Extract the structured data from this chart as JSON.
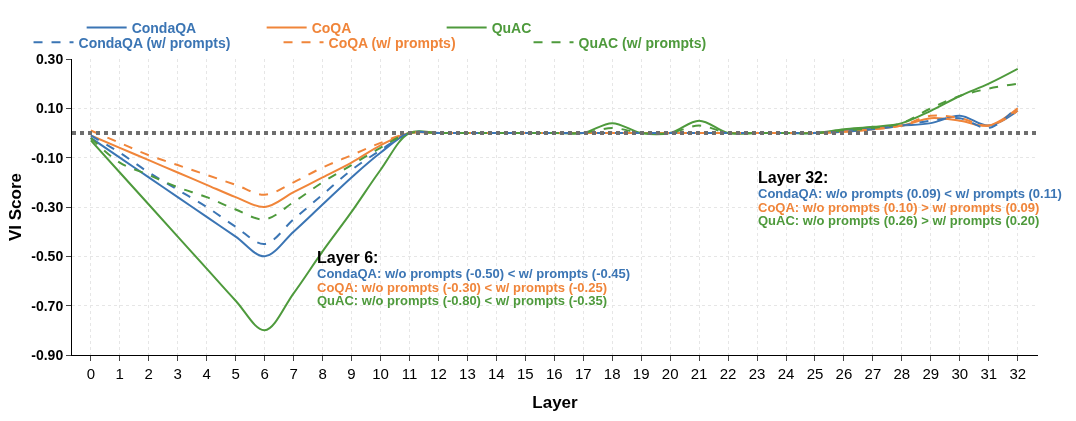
{
  "chart_data": {
    "type": "line",
    "xlabel": "Layer",
    "ylabel": "VI Score",
    "x": [
      0,
      1,
      2,
      3,
      4,
      5,
      6,
      7,
      8,
      9,
      10,
      11,
      12,
      13,
      14,
      15,
      16,
      17,
      18,
      19,
      20,
      21,
      22,
      23,
      24,
      25,
      26,
      27,
      28,
      29,
      30,
      31,
      32
    ],
    "xlim": [
      -0.65,
      32.7
    ],
    "xticks": [
      0,
      1,
      2,
      3,
      4,
      5,
      6,
      7,
      8,
      9,
      10,
      11,
      12,
      13,
      14,
      15,
      16,
      17,
      18,
      19,
      20,
      21,
      22,
      23,
      24,
      25,
      26,
      27,
      28,
      29,
      30,
      31,
      32
    ],
    "ylim": [
      -0.9,
      0.3
    ],
    "yticks": [
      {
        "value": -0.9,
        "label": "-0.90"
      },
      {
        "value": -0.7,
        "label": "-0.70"
      },
      {
        "value": -0.5,
        "label": "-0.50"
      },
      {
        "value": -0.3,
        "label": "-0.30"
      },
      {
        "value": -0.1,
        "label": "-0.10"
      },
      {
        "value": 0.1,
        "label": "0.10"
      },
      {
        "value": 0.3,
        "label": "0.30"
      }
    ],
    "grid": true,
    "legend": "top",
    "marker": "none",
    "series": [
      {
        "name": "CondaQA",
        "color": "#3b75b4",
        "line_style": "solid",
        "values": [
          -0.02,
          -0.1,
          -0.18,
          -0.26,
          -0.34,
          -0.42,
          -0.5,
          -0.4,
          -0.29,
          -0.18,
          -0.08,
          0,
          0,
          0,
          0,
          0,
          0,
          0,
          0,
          0,
          0,
          0,
          0,
          0,
          0,
          0,
          0.01,
          0.02,
          0.03,
          0.04,
          0.07,
          0.03,
          0.09
        ]
      },
      {
        "name": "CoQA",
        "color": "#f0853a",
        "line_style": "solid",
        "values": [
          -0.01,
          -0.06,
          -0.11,
          -0.16,
          -0.21,
          -0.26,
          -0.3,
          -0.24,
          -0.18,
          -0.12,
          -0.05,
          0,
          0,
          0,
          0,
          0,
          0,
          0,
          0,
          0,
          0,
          0,
          0,
          0,
          0,
          0,
          0.005,
          0.015,
          0.03,
          0.06,
          0.05,
          0.03,
          0.1
        ]
      },
      {
        "name": "QuAC",
        "color": "#4e9a3c",
        "line_style": "solid",
        "values": [
          -0.03,
          -0.16,
          -0.29,
          -0.42,
          -0.55,
          -0.68,
          -0.8,
          -0.65,
          -0.48,
          -0.32,
          -0.15,
          0,
          0,
          0,
          0,
          0,
          0,
          0,
          0.04,
          0,
          0,
          0.05,
          0,
          0,
          0,
          0,
          0.015,
          0.025,
          0.04,
          0.09,
          0.15,
          0.2,
          0.26
        ]
      },
      {
        "name": "CondaQA (w/ prompts)",
        "color": "#3b75b4",
        "line_style": "dashed",
        "values": [
          -0.01,
          -0.08,
          -0.16,
          -0.23,
          -0.3,
          -0.38,
          -0.45,
          -0.35,
          -0.25,
          -0.15,
          -0.07,
          0,
          0,
          0,
          0,
          0,
          0,
          0,
          0,
          0,
          0,
          0,
          0,
          0,
          0,
          0,
          0.005,
          0.015,
          0.03,
          0.05,
          0.06,
          0.02,
          0.11
        ]
      },
      {
        "name": "CoQA (w/ prompts)",
        "color": "#f0853a",
        "line_style": "dashed",
        "values": [
          0.01,
          -0.04,
          -0.09,
          -0.13,
          -0.17,
          -0.21,
          -0.25,
          -0.2,
          -0.14,
          -0.09,
          -0.04,
          0,
          0,
          0,
          0,
          0,
          0,
          0,
          0,
          0,
          0,
          0,
          0,
          0,
          0,
          0,
          0.005,
          0.015,
          0.03,
          0.07,
          0.06,
          0.03,
          0.09
        ]
      },
      {
        "name": "QuAC (w/ prompts)",
        "color": "#4e9a3c",
        "line_style": "dashed",
        "values": [
          -0.02,
          -0.12,
          -0.17,
          -0.22,
          -0.26,
          -0.31,
          -0.35,
          -0.28,
          -0.2,
          -0.13,
          -0.06,
          0,
          0,
          0,
          0,
          0,
          0,
          0,
          0.02,
          0,
          0,
          0.03,
          0,
          0,
          0,
          0,
          0.01,
          0.02,
          0.04,
          0.1,
          0.15,
          0.18,
          0.2
        ]
      }
    ],
    "ref_lines": [
      {
        "axis": "y",
        "value": 0,
        "color": "#6e6e6e",
        "line_style": "dotted"
      }
    ],
    "annotations": [
      "Layer 6:",
      "CondaQA: w/o prompts (-0.50) < w/ prompts (-0.45)",
      "CoQA: w/o prompts (-0.30) < w/ prompts (-0.25)",
      "QuAC: w/o prompts (-0.80) < w/ prompts (-0.35)",
      "Layer 32:",
      "CondaQA: w/o prompts (0.09) < w/ prompts (0.11)",
      "CoQA: w/o prompts (0.10) > w/ prompts (0.09)",
      "QuAC: w/o prompts (0.26) > w/ prompts (0.20)"
    ]
  }
}
